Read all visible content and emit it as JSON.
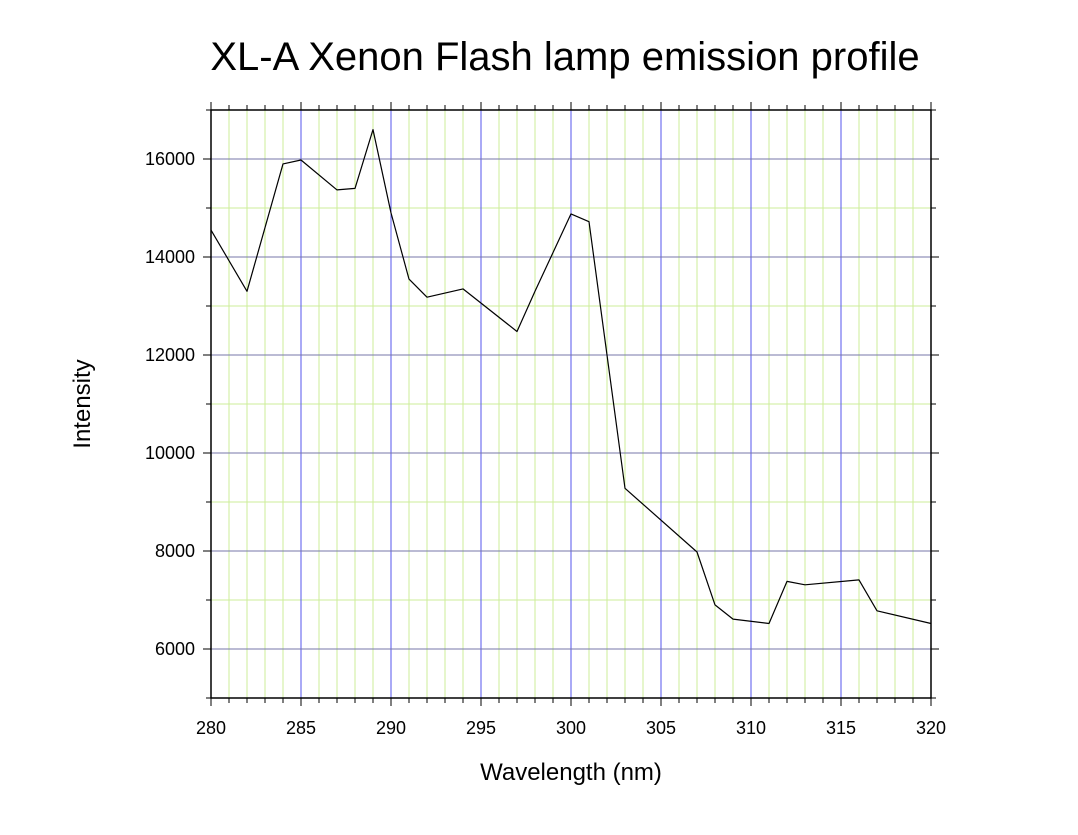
{
  "chart_data": {
    "type": "line",
    "title": "XL-A Xenon Flash lamp emission profile",
    "xlabel": "Wavelength (nm)",
    "ylabel": "Intensity",
    "xlim": [
      280,
      320
    ],
    "ylim": [
      5000,
      17000
    ],
    "x_ticks": [
      280,
      285,
      290,
      295,
      300,
      305,
      310,
      315,
      320
    ],
    "y_ticks": [
      6000,
      8000,
      10000,
      12000,
      14000,
      16000
    ],
    "grid": true,
    "grid_major_color": "#5555ee",
    "grid_minor_color": "#ccee99",
    "line_color": "#000000",
    "series": [
      {
        "x": [
          280,
          282,
          284,
          285,
          287,
          288,
          289,
          290,
          291,
          292,
          294,
          297,
          298,
          300,
          301,
          303,
          307,
          308,
          309,
          311,
          312,
          313,
          316,
          317,
          320
        ],
        "y": [
          14550,
          13300,
          15900,
          15980,
          15370,
          15400,
          16600,
          14900,
          13550,
          13180,
          13350,
          12480,
          13300,
          14880,
          14720,
          9280,
          7980,
          6900,
          6610,
          6520,
          7380,
          7310,
          7410,
          6780,
          6520
        ]
      }
    ]
  }
}
